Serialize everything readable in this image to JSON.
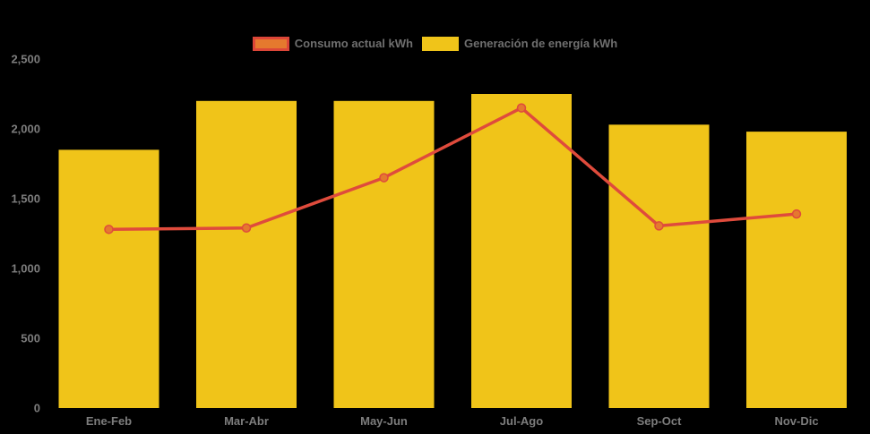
{
  "legend": {
    "items": [
      {
        "label": "Consumo actual kWh",
        "series_type": "line",
        "swatch_fill": "#E5792E",
        "swatch_border": "#DC4638"
      },
      {
        "label": "Generación de energía kWh",
        "series_type": "bar",
        "swatch_fill": "#F0C419",
        "swatch_border": "#F0C419"
      }
    ],
    "text_color": "#6F6F6F",
    "position": "top-center"
  },
  "chart_data": {
    "type": "bar",
    "subtype": "bar-with-line-overlay",
    "title": "",
    "xlabel": "",
    "ylabel": "",
    "categories": [
      "Ene-Feb",
      "Mar-Abr",
      "May-Jun",
      "Jul-Ago",
      "Sep-Oct",
      "Nov-Dic"
    ],
    "series": [
      {
        "name": "Generación de energía kWh",
        "type": "bar",
        "color": "#F0C419",
        "values": [
          1850,
          2200,
          2200,
          2250,
          2030,
          1980
        ]
      },
      {
        "name": "Consumo actual kWh",
        "type": "line",
        "color": "#DF4B3C",
        "marker_fill": "#E5792E",
        "marker_stroke": "#DF4B3C",
        "values": [
          1280,
          1290,
          1650,
          2150,
          1305,
          1390
        ]
      }
    ],
    "ylim": [
      0,
      2500
    ],
    "y_ticks": [
      {
        "value": 0,
        "label": "0"
      },
      {
        "value": 500,
        "label": "500"
      },
      {
        "value": 1000,
        "label": "1,000"
      },
      {
        "value": 1500,
        "label": "1,500"
      },
      {
        "value": 2000,
        "label": "2,000"
      },
      {
        "value": 2500,
        "label": "2,500"
      }
    ],
    "grid": false,
    "background": "#000000",
    "axis_text_color": "#7D7D7D",
    "legend_position": "top"
  }
}
